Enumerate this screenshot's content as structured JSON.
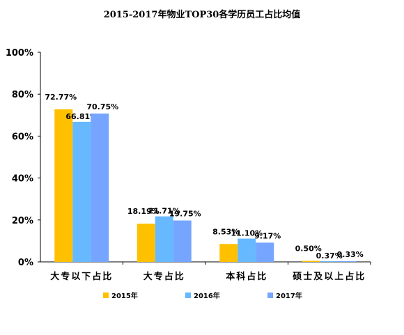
{
  "chart_data": {
    "type": "bar",
    "title": "2015-2017年物业TOP30各学历员工占比均值",
    "categories": [
      "大专以下占比",
      "大专占比",
      "本科占比",
      "硕士及以上占比"
    ],
    "series": [
      {
        "name": "2015年",
        "color": "#FFC000",
        "values": [
          72.77,
          18.19,
          8.53,
          0.5
        ],
        "labels": [
          "72.77%",
          "18.19%",
          "8.53%",
          "0.50%"
        ]
      },
      {
        "name": "2016年",
        "color": "#66B8FF",
        "values": [
          66.81,
          21.71,
          11.1,
          0.37
        ],
        "labels": [
          "66.81%",
          "21.71%",
          "11.10%",
          "0.37%"
        ]
      },
      {
        "name": "2017年",
        "color": "#75A5FF",
        "values": [
          70.75,
          19.75,
          9.17,
          0.33
        ],
        "labels": [
          "70.75%",
          "19.75%",
          "9.17%",
          "0.33%"
        ]
      }
    ],
    "yticks": [
      "0%",
      "20%",
      "40%",
      "60%",
      "80%",
      "100%"
    ],
    "ylim": [
      0,
      100
    ],
    "grid": false,
    "legend": "bottom"
  }
}
